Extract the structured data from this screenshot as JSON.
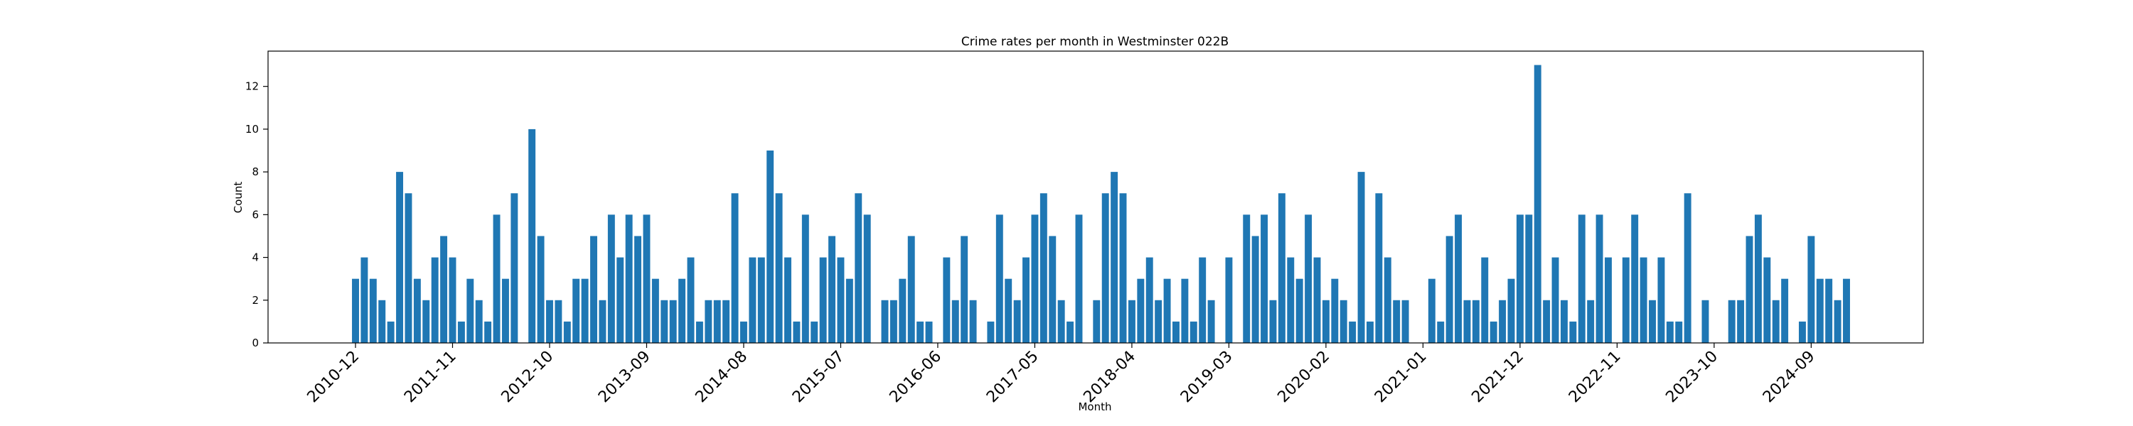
{
  "chart_data": {
    "type": "bar",
    "title": "Crime rates per month in Westminster 022B",
    "xlabel": "Month",
    "ylabel": "Count",
    "ylim": [
      0,
      13.65
    ],
    "yticks": [
      0,
      2,
      4,
      6,
      8,
      10,
      12
    ],
    "x_tick_labels": [
      "2010-12",
      "2011-11",
      "2012-10",
      "2013-09",
      "2014-08",
      "2015-07",
      "2016-06",
      "2017-05",
      "2018-04",
      "2019-03",
      "2020-02",
      "2021-01",
      "2021-12",
      "2022-11",
      "2023-10",
      "2024-09"
    ],
    "start_month": "2010-12",
    "values": [
      3,
      4,
      3,
      2,
      1,
      8,
      7,
      3,
      2,
      4,
      5,
      4,
      1,
      3,
      2,
      1,
      6,
      3,
      7,
      0,
      10,
      5,
      2,
      2,
      1,
      3,
      3,
      5,
      2,
      6,
      4,
      6,
      5,
      6,
      3,
      2,
      2,
      3,
      4,
      1,
      2,
      2,
      2,
      7,
      1,
      4,
      4,
      9,
      7,
      4,
      1,
      6,
      1,
      4,
      5,
      4,
      3,
      7,
      6,
      0,
      2,
      2,
      3,
      5,
      1,
      1,
      0,
      4,
      2,
      5,
      2,
      0,
      1,
      6,
      3,
      2,
      4,
      6,
      7,
      5,
      2,
      1,
      6,
      0,
      2,
      7,
      8,
      7,
      2,
      3,
      4,
      2,
      3,
      1,
      3,
      1,
      4,
      2,
      0,
      4,
      0,
      6,
      5,
      6,
      2,
      7,
      4,
      3,
      6,
      4,
      2,
      3,
      2,
      1,
      8,
      1,
      7,
      4,
      2,
      2,
      0,
      0,
      3,
      1,
      5,
      6,
      2,
      2,
      4,
      1,
      2,
      3,
      6,
      6,
      13,
      2,
      4,
      2,
      1,
      6,
      2,
      6,
      4,
      0,
      4,
      6,
      4,
      2,
      4,
      1,
      1,
      7,
      0,
      2,
      0,
      0,
      2,
      2,
      5,
      6,
      4,
      2,
      3,
      0,
      1,
      5,
      3,
      3,
      2,
      3
    ],
    "grid": false,
    "legend": "none"
  }
}
